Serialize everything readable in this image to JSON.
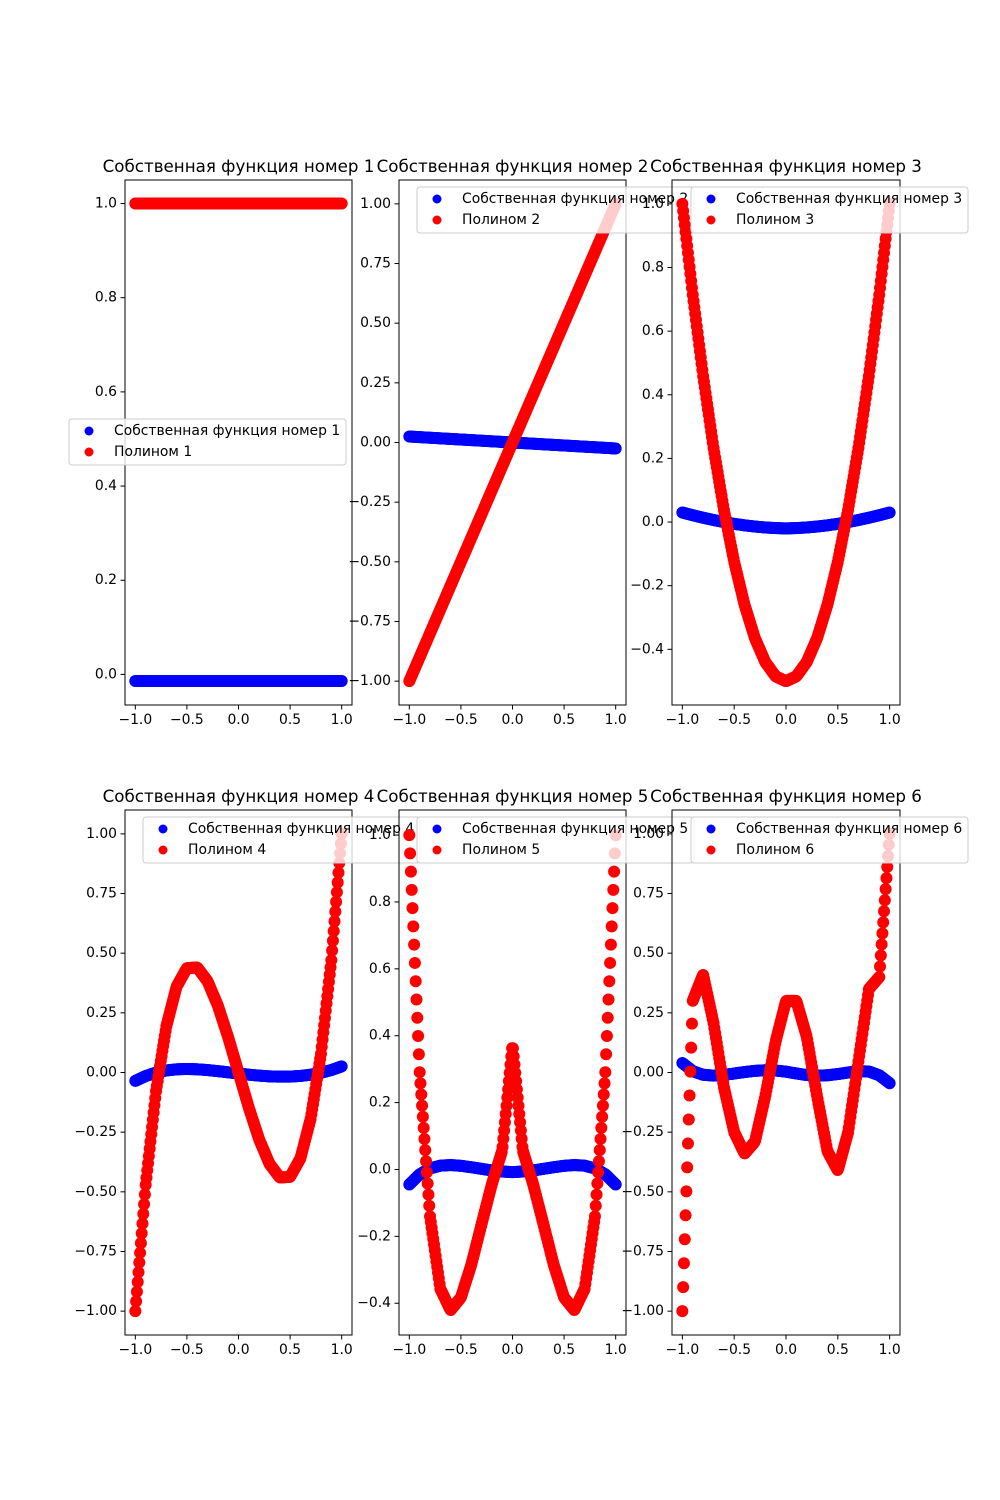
{
  "colors": {
    "eigen": "#0000ff",
    "poly": "#ff0000"
  },
  "chart_data": [
    {
      "type": "scatter",
      "title": "Собственная функция номер 1",
      "xlim": [
        -1.1,
        1.1
      ],
      "ylim": [
        -0.065,
        1.05
      ],
      "xticks": [
        -1.0,
        -0.5,
        0.0,
        0.5,
        1.0
      ],
      "xtick_labels": [
        "−1.0",
        "−0.5",
        "0.0",
        "0.5",
        "1.0"
      ],
      "yticks": [
        0.0,
        0.2,
        0.4,
        0.6,
        0.8,
        1.0
      ],
      "ytick_labels": [
        "0.0",
        "0.2",
        "0.4",
        "0.6",
        "0.8",
        "1.0"
      ],
      "legend": "center-left",
      "series": [
        {
          "name": "Собственная функция номер 1",
          "color": "blue",
          "x_range": [
            -1.0,
            1.0
          ],
          "y": [
            -0.014,
            -0.014,
            -0.014,
            -0.014,
            -0.014,
            -0.014,
            -0.014,
            -0.014,
            -0.014,
            -0.014,
            -0.014,
            -0.014,
            -0.014,
            -0.014,
            -0.014,
            -0.014,
            -0.014,
            -0.014,
            -0.014,
            -0.014,
            -0.014
          ]
        },
        {
          "name": "Полином 1",
          "color": "red",
          "x_range": [
            -1.0,
            1.0
          ],
          "y": [
            1.0,
            1.0,
            1.0,
            1.0,
            1.0,
            1.0,
            1.0,
            1.0,
            1.0,
            1.0,
            1.0,
            1.0,
            1.0,
            1.0,
            1.0,
            1.0,
            1.0,
            1.0,
            1.0,
            1.0,
            1.0
          ]
        }
      ]
    },
    {
      "type": "scatter",
      "title": "Собственная функция номер 2",
      "xlim": [
        -1.1,
        1.1
      ],
      "ylim": [
        -1.1,
        1.1
      ],
      "xticks": [
        -1.0,
        -0.5,
        0.0,
        0.5,
        1.0
      ],
      "xtick_labels": [
        "−1.0",
        "−0.5",
        "0.0",
        "0.5",
        "1.0"
      ],
      "yticks": [
        -1.0,
        -0.75,
        -0.5,
        -0.25,
        0.0,
        0.25,
        0.5,
        0.75,
        1.0
      ],
      "ytick_labels": [
        "−1.00",
        "−0.75",
        "−0.50",
        "−0.25",
        "0.00",
        "0.25",
        "0.50",
        "0.75",
        "1.00"
      ],
      "legend": "top-right",
      "series": [
        {
          "name": "Собственная функция номер 2",
          "color": "blue",
          "x_range": [
            -1.0,
            1.0
          ],
          "y": [
            0.025,
            0.0225,
            0.02,
            0.0175,
            0.015,
            0.0125,
            0.01,
            0.0075,
            0.005,
            0.0025,
            0.0,
            -0.0025,
            -0.005,
            -0.0075,
            -0.01,
            -0.0125,
            -0.015,
            -0.0175,
            -0.02,
            -0.0225,
            -0.025
          ]
        },
        {
          "name": "Полином 2",
          "color": "red",
          "x_range": [
            -1.0,
            1.0
          ],
          "y": [
            -1.0,
            -0.9,
            -0.8,
            -0.7,
            -0.6,
            -0.5,
            -0.4,
            -0.3,
            -0.2,
            -0.1,
            0.0,
            0.1,
            0.2,
            0.3,
            0.4,
            0.5,
            0.6,
            0.7,
            0.8,
            0.9,
            1.0
          ]
        }
      ]
    },
    {
      "type": "scatter",
      "title": "Собственная функция номер 3",
      "xlim": [
        -1.1,
        1.1
      ],
      "ylim": [
        -0.575,
        1.075
      ],
      "xticks": [
        -1.0,
        -0.5,
        0.0,
        0.5,
        1.0
      ],
      "xtick_labels": [
        "−1.0",
        "−0.5",
        "0.0",
        "0.5",
        "1.0"
      ],
      "yticks": [
        -0.4,
        -0.2,
        0.0,
        0.2,
        0.4,
        0.6,
        0.8,
        1.0
      ],
      "ytick_labels": [
        "−0.4",
        "−0.2",
        "0.0",
        "0.2",
        "0.4",
        "0.6",
        "0.8",
        "1.0"
      ],
      "legend": "top-right",
      "series": [
        {
          "name": "Собственная функция номер 3",
          "color": "blue",
          "x_range": [
            -1.0,
            1.0
          ],
          "y": [
            0.03,
            0.0215,
            0.0136,
            0.0065,
            0.0,
            -0.0056,
            -0.0103,
            -0.0141,
            -0.017,
            -0.019,
            -0.02,
            -0.019,
            -0.017,
            -0.0141,
            -0.0103,
            -0.0056,
            0.0,
            0.0065,
            0.0136,
            0.0215,
            0.03
          ]
        },
        {
          "name": "Полином 3",
          "color": "red",
          "x_range": [
            -1.0,
            1.0
          ],
          "y": [
            1.0,
            0.715,
            0.46,
            0.235,
            0.04,
            -0.125,
            -0.26,
            -0.365,
            -0.44,
            -0.485,
            -0.5,
            -0.485,
            -0.44,
            -0.365,
            -0.26,
            -0.125,
            0.04,
            0.235,
            0.46,
            0.715,
            1.0
          ]
        }
      ]
    },
    {
      "type": "scatter",
      "title": "Собственная функция номер 4",
      "xlim": [
        -1.1,
        1.1
      ],
      "ylim": [
        -1.1,
        1.1
      ],
      "xticks": [
        -1.0,
        -0.5,
        0.0,
        0.5,
        1.0
      ],
      "xtick_labels": [
        "−1.0",
        "−0.5",
        "0.0",
        "0.5",
        "1.0"
      ],
      "yticks": [
        -1.0,
        -0.75,
        -0.5,
        -0.25,
        0.0,
        0.25,
        0.5,
        0.75,
        1.0
      ],
      "ytick_labels": [
        "−1.00",
        "−0.75",
        "−0.50",
        "−0.25",
        "0.00",
        "0.25",
        "0.50",
        "0.75",
        "1.00"
      ],
      "legend": "top-right",
      "series": [
        {
          "name": "Собственная функция номер 4",
          "color": "blue",
          "x_range": [
            -1.0,
            1.0
          ],
          "y": [
            -0.035,
            -0.0147,
            -0.0005,
            0.0085,
            0.0133,
            0.0147,
            0.0134,
            0.0102,
            0.0058,
            0.0008,
            -0.0043,
            -0.0091,
            -0.0132,
            -0.0161,
            -0.0175,
            -0.0171,
            -0.0144,
            -0.0092,
            -0.001,
            0.0105,
            0.0257
          ]
        },
        {
          "name": "Полином 4",
          "color": "red",
          "x_range": [
            -1.0,
            1.0
          ],
          "y": [
            -1.0,
            -0.4725,
            -0.08,
            0.1925,
            0.36,
            0.4375,
            0.44,
            0.3825,
            0.28,
            0.1475,
            0.0,
            -0.1475,
            -0.28,
            -0.3825,
            -0.44,
            -0.4375,
            -0.36,
            -0.1925,
            0.08,
            0.4725,
            1.0
          ]
        }
      ]
    },
    {
      "type": "scatter",
      "title": "Собственная функция номер 5",
      "xlim": [
        -1.1,
        1.1
      ],
      "ylim": [
        -0.495,
        1.075
      ],
      "xticks": [
        -1.0,
        -0.5,
        0.0,
        0.5,
        1.0
      ],
      "xtick_labels": [
        "−1.0",
        "−0.5",
        "0.0",
        "0.5",
        "1.0"
      ],
      "yticks": [
        -0.4,
        -0.2,
        0.0,
        0.2,
        0.4,
        0.6,
        0.8,
        1.0
      ],
      "ytick_labels": [
        "−0.4",
        "−0.2",
        "0.0",
        "0.2",
        "0.4",
        "0.6",
        "0.8",
        "1.0"
      ],
      "legend": "top-right",
      "series": [
        {
          "name": "Собственная функция номер 5",
          "color": "blue",
          "x_range": [
            -1.0,
            1.0
          ],
          "y": [
            -0.045,
            -0.0146,
            0.0031,
            0.0114,
            0.0132,
            0.011,
            0.0067,
            0.0018,
            -0.0027,
            -0.0061,
            -0.008,
            -0.0061,
            -0.0027,
            0.0018,
            0.0067,
            0.011,
            0.0132,
            0.0114,
            0.0031,
            -0.0146,
            -0.045
          ]
        },
        {
          "name": "Полином 5",
          "color": "red",
          "x_range": [
            -1.0,
            1.0
          ],
          "y": [
            1.0,
            0.2926,
            -0.1386,
            -0.3565,
            -0.4208,
            -0.3828,
            -0.2856,
            -0.1638,
            -0.0438,
            0.0564,
            0.375,
            0.0564,
            -0.0438,
            -0.1638,
            -0.2856,
            -0.3828,
            -0.4208,
            -0.3565,
            -0.1386,
            0.2926,
            1.0
          ]
        }
      ]
    },
    {
      "type": "scatter",
      "title": "Собственная функция номер 6",
      "xlim": [
        -1.1,
        1.1
      ],
      "ylim": [
        -1.1,
        1.1
      ],
      "xticks": [
        -1.0,
        -0.5,
        0.0,
        0.5,
        1.0
      ],
      "xtick_labels": [
        "−1.0",
        "−0.5",
        "0.0",
        "0.5",
        "1.0"
      ],
      "yticks": [
        -1.0,
        -0.75,
        -0.5,
        -0.25,
        0.0,
        0.25,
        0.5,
        0.75,
        1.0
      ],
      "ytick_labels": [
        "−1.00",
        "−0.75",
        "−0.50",
        "−0.25",
        "0.00",
        "0.25",
        "0.50",
        "0.75",
        "1.00"
      ],
      "legend": "top-right",
      "series": [
        {
          "name": "Собственная функция номер 6",
          "color": "blue",
          "x_range": [
            -1.0,
            1.0
          ],
          "y": [
            0.04,
            0.0056,
            -0.0094,
            -0.0131,
            -0.0102,
            -0.0044,
            0.002,
            0.0069,
            0.0093,
            0.0083,
            0.0034,
            -0.0041,
            -0.0105,
            -0.0134,
            -0.0116,
            -0.0064,
            0.0,
            0.0057,
            0.0042,
            -0.0115,
            -0.045
          ]
        },
        {
          "name": "Полином 6",
          "color": "red",
          "x_range": [
            -1.0,
            1.0
          ],
          "y": [
            -1.0,
            0.3,
            0.41,
            0.21,
            -0.06,
            -0.25,
            -0.34,
            -0.29,
            -0.1,
            0.13,
            0.3,
            0.3,
            0.15,
            -0.1,
            -0.33,
            -0.41,
            -0.25,
            0.05,
            0.35,
            0.4,
            1.0
          ]
        }
      ]
    }
  ]
}
